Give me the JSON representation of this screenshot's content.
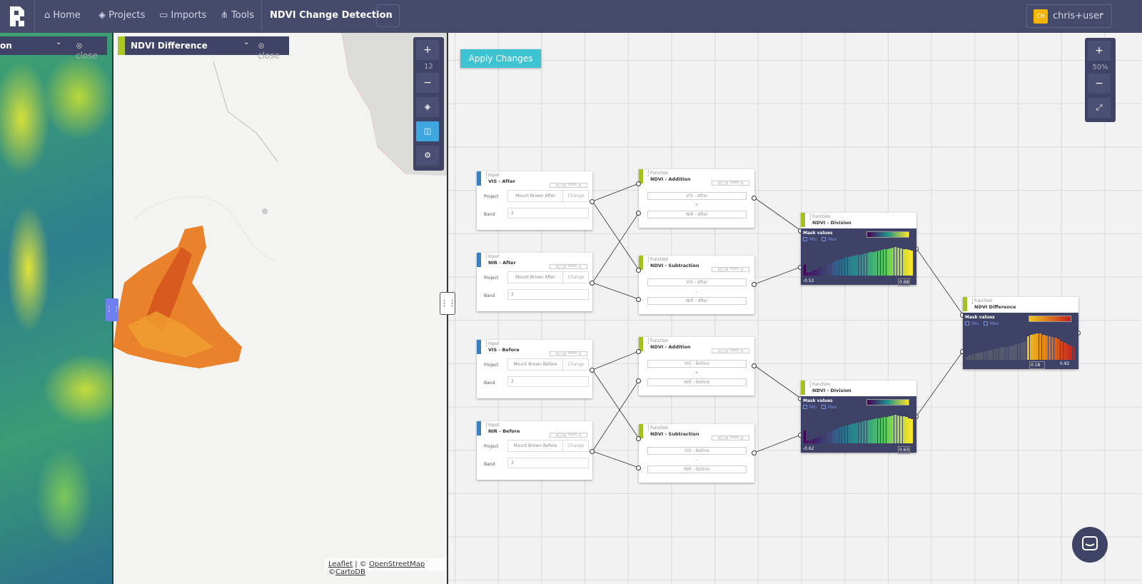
{
  "nav": {
    "items": [
      "Home",
      "Projects",
      "Imports",
      "Tools"
    ],
    "tool_name": "NDVI Change Detection",
    "user": {
      "initials": "CH",
      "name": "chris+user"
    }
  },
  "map": {
    "left_panel": {
      "title": "on",
      "close": "close"
    },
    "right_panel": {
      "title": "NDVI Difference",
      "close": "close"
    },
    "zoom": "12",
    "attribution": {
      "leaflet": "Leaflet",
      "sep": "| ©",
      "osm": "OpenStreetMap",
      "carto_prefix": "©",
      "carto": "CartoDB"
    }
  },
  "editor": {
    "apply": "Apply Changes",
    "zoom": "50%"
  },
  "nodes": [
    {
      "kind": "Input",
      "label": "VIS - After",
      "stats": "Stats",
      "project_label": "Project",
      "project": "Mount Brown After",
      "change": "Change",
      "band_label": "Band",
      "band": "2"
    },
    {
      "kind": "Input",
      "label": "NIR - After",
      "stats": "Stats",
      "project_label": "Project",
      "project": "Mount Brown After",
      "change": "Change",
      "band_label": "Band",
      "band": "3"
    },
    {
      "kind": "Input",
      "label": "VIS - Before",
      "stats": "Stats",
      "project_label": "Project",
      "project": "Mount Brown Before",
      "change": "Change",
      "band_label": "Band",
      "band": "2"
    },
    {
      "kind": "Input",
      "label": "NIR - Before",
      "stats": "Stats",
      "project_label": "Project",
      "project": "Mount Brown Before",
      "change": "Change",
      "band_label": "Band",
      "band": "3"
    },
    {
      "kind": "Function",
      "label": "NDVI - Addition",
      "stats": "Stats",
      "args": [
        "VIS - After",
        "+",
        "NIR - After"
      ]
    },
    {
      "kind": "Function",
      "label": "NDVI - Subtraction",
      "stats": "Stats",
      "args": [
        "VIS - After",
        "-",
        "NIR - After"
      ]
    },
    {
      "kind": "Function",
      "label": "NDVI - Addition",
      "stats": "Stats",
      "args": [
        "VIS - Before",
        "+",
        "NIR - Before"
      ]
    },
    {
      "kind": "Function",
      "label": "NDVI - Subtraction",
      "stats": "Stats",
      "args": [
        "VIS - Before",
        "-",
        "NIR - Before"
      ]
    },
    {
      "kind": "Function",
      "label": "NDVI - Division",
      "mask_label": "Mask values",
      "min_label": "Min",
      "max_label": "Max",
      "min": "-0.52",
      "max": "0.68",
      "histogram": [
        0.35,
        0.1,
        0.12,
        0.15,
        0.18,
        0.22,
        0.25,
        0.3,
        0.33,
        0.38,
        0.42,
        0.46,
        0.5,
        0.52,
        0.55,
        0.58,
        0.6,
        0.62,
        0.63,
        0.65,
        0.66,
        0.68,
        0.7,
        0.72,
        0.74,
        0.75,
        0.78,
        0.8,
        0.82,
        0.84,
        0.85,
        0.86,
        0.88,
        0.9,
        0.88,
        0.86,
        0.85,
        0.84,
        0.82,
        0.8
      ]
    },
    {
      "kind": "Function",
      "label": "NDVI - Division",
      "mask_label": "Mask values",
      "min_label": "Min",
      "max_label": "Max",
      "min": "-0.62",
      "max": "0.63",
      "histogram": [
        0.4,
        0.08,
        0.1,
        0.13,
        0.16,
        0.2,
        0.24,
        0.28,
        0.32,
        0.36,
        0.4,
        0.44,
        0.48,
        0.52,
        0.55,
        0.57,
        0.6,
        0.62,
        0.64,
        0.66,
        0.67,
        0.7,
        0.72,
        0.73,
        0.75,
        0.77,
        0.79,
        0.8,
        0.82,
        0.84,
        0.85,
        0.87,
        0.88,
        0.9,
        0.89,
        0.87,
        0.86,
        0.84,
        0.8,
        0.78
      ]
    },
    {
      "kind": "Function",
      "label": "NDVI Difference",
      "mask_label": "Mask values",
      "min_label": "Min",
      "max_label": "Max",
      "min": "0.18",
      "max": "0.92",
      "histogram": [
        0.1,
        0.15,
        0.18,
        0.2,
        0.22,
        0.25,
        0.28,
        0.3,
        0.32,
        0.34,
        0.36,
        0.38,
        0.4,
        0.42,
        0.44,
        0.46,
        0.5,
        0.52,
        0.55,
        0.6,
        0.75,
        0.8,
        0.82,
        0.85,
        0.83,
        0.8,
        0.78,
        0.75,
        0.72,
        0.7,
        0.65,
        0.6,
        0.55,
        0.5,
        0.45,
        0.4
      ]
    }
  ]
}
